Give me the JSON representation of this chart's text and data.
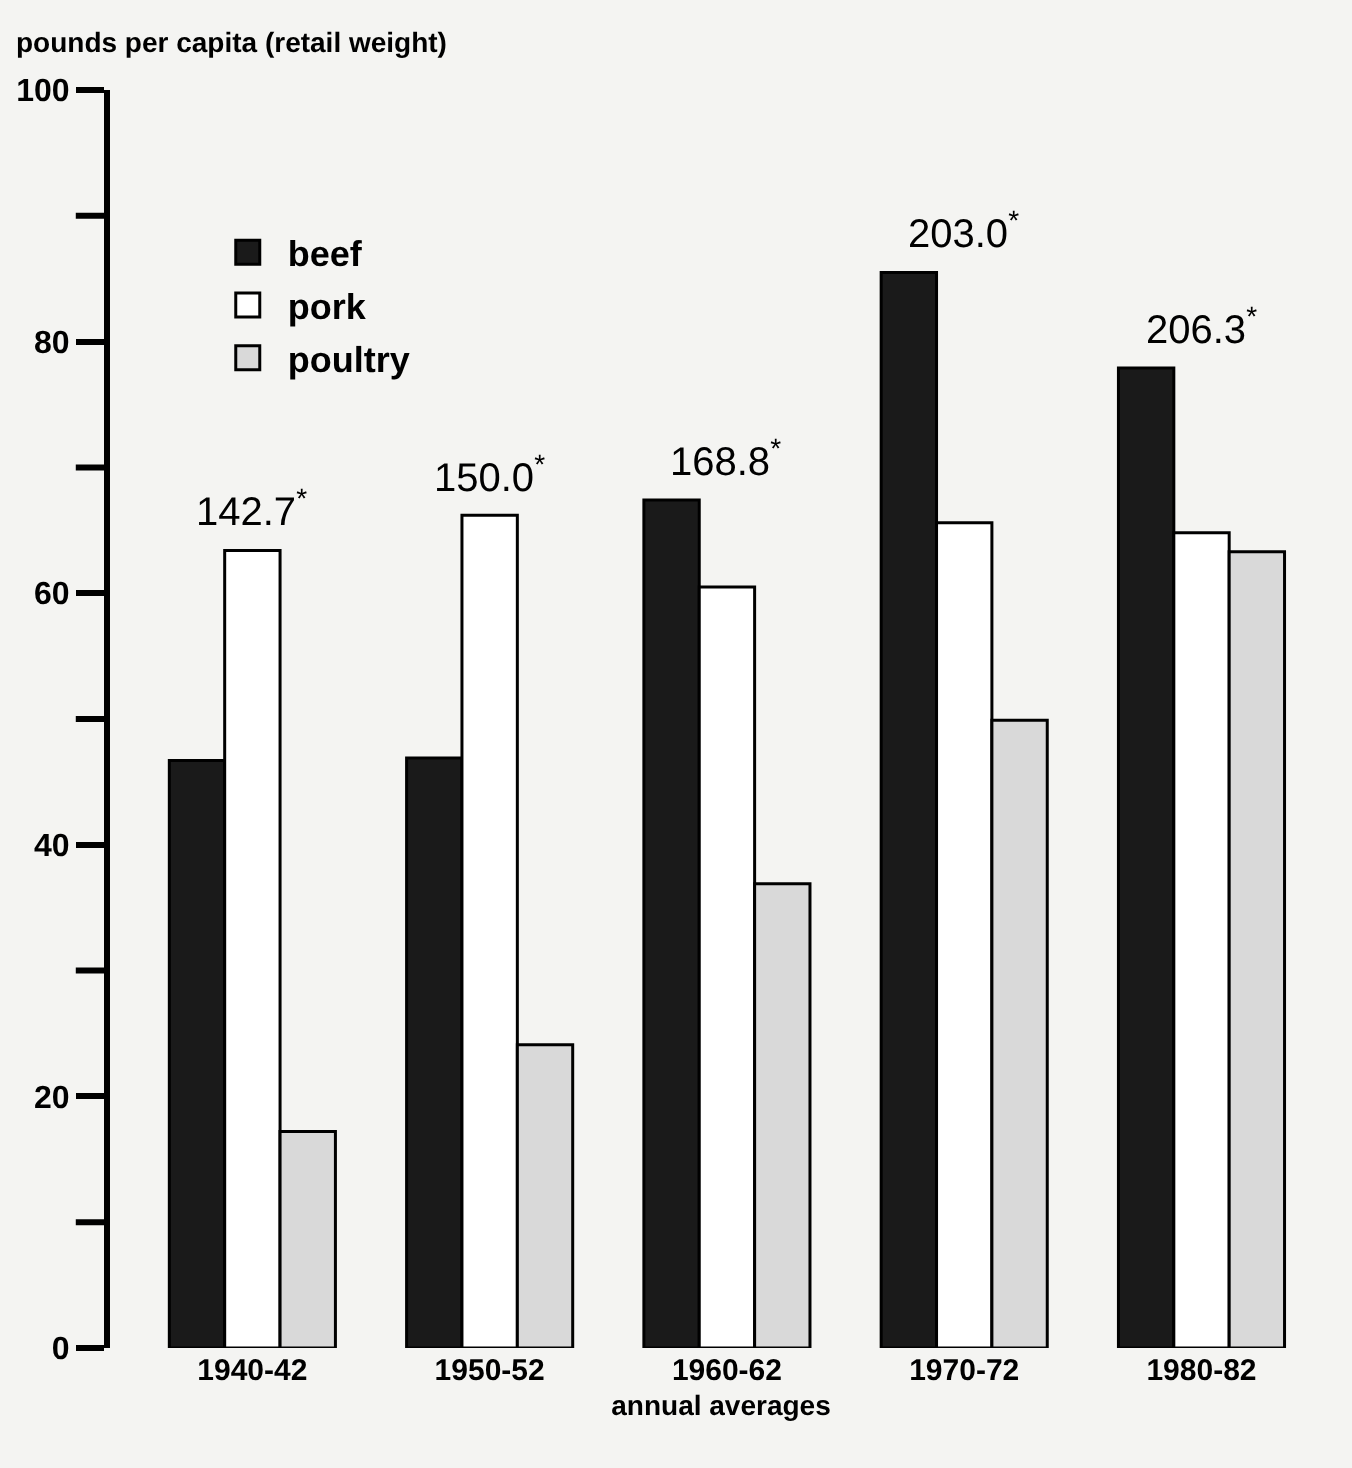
{
  "chart_data": {
    "type": "bar",
    "ylabel": "pounds per capita (retail weight)",
    "xlabel": "annual averages",
    "categories": [
      "1940-42",
      "1950-52",
      "1960-62",
      "1970-72",
      "1980-82"
    ],
    "series": [
      {
        "name": "beef",
        "color": "#1a1a1a",
        "values": [
          46.7,
          46.9,
          67.4,
          85.5,
          77.9
        ]
      },
      {
        "name": "pork",
        "color": "#ffffff",
        "values": [
          63.4,
          66.2,
          60.5,
          65.6,
          64.8
        ]
      },
      {
        "name": "poultry",
        "color": "#d9d9d9",
        "values": [
          17.2,
          24.1,
          36.9,
          49.9,
          63.3
        ]
      }
    ],
    "annotations": [
      "142.7$^{*}$",
      "150.0$^{*}$",
      "168.8$^{*}$",
      "203.0$^{*}$",
      "206.3$^{*}$"
    ],
    "ylim": [
      0,
      100
    ],
    "yticks": [
      0,
      20,
      40,
      60,
      80,
      100
    ],
    "grid": false,
    "legend": "top left"
  }
}
